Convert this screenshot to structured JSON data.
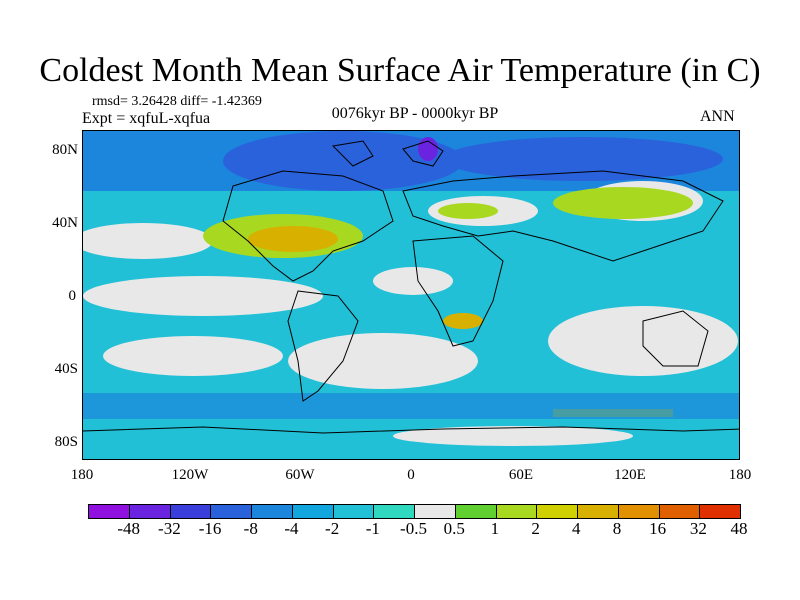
{
  "title": "Coldest Month Mean Surface Air Temperature (in C)",
  "stats_line": "rmsd= 3.26428 diff= -1.42369",
  "experiment_line": "Expt = xqfuL-xqfua",
  "period_label": "0076kyr BP - 0000kyr BP",
  "season_label": "ANN",
  "y_axis_labels": [
    "80N",
    "40N",
    "0",
    "40S",
    "80S"
  ],
  "x_axis_labels": [
    "180",
    "120W",
    "60W",
    "0",
    "60E",
    "120E",
    "180"
  ],
  "colorbar": {
    "labels": [
      "-48",
      "-32",
      "-16",
      "-8",
      "-4",
      "-2",
      "-1",
      "-0.5",
      "0.5",
      "1",
      "2",
      "4",
      "8",
      "16",
      "32",
      "48"
    ],
    "colors": [
      "#9010e0",
      "#6a24e0",
      "#3a3fdc",
      "#2a62dc",
      "#1c86dc",
      "#12a6de",
      "#22c0d6",
      "#30d8c0",
      "#e8e8e8",
      "#60d030",
      "#a8d820",
      "#d0d000",
      "#d8b000",
      "#e09000",
      "#e06000",
      "#e03000"
    ]
  }
}
